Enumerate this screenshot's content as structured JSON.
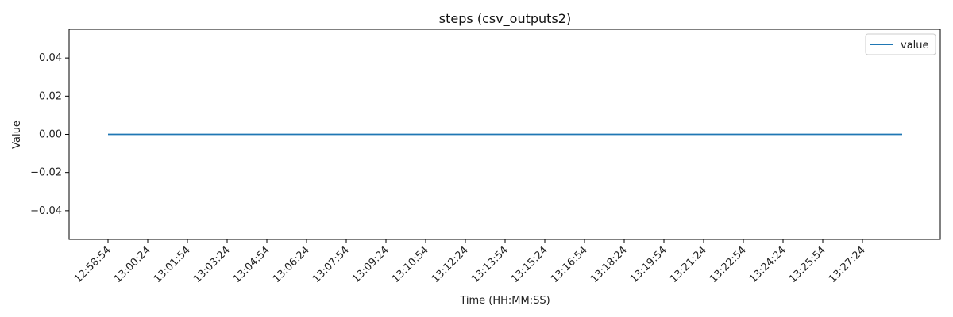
{
  "chart_data": {
    "type": "line",
    "title": "steps (csv_outputs2)",
    "xlabel": "Time (HH:MM:SS)",
    "ylabel": "Value",
    "x_ticks": [
      "12:58:54",
      "13:00:24",
      "13:01:54",
      "13:03:24",
      "13:04:54",
      "13:06:24",
      "13:07:54",
      "13:09:24",
      "13:10:54",
      "13:12:24",
      "13:13:54",
      "13:15:24",
      "13:16:54",
      "13:18:24",
      "13:19:54",
      "13:21:24",
      "13:22:54",
      "13:24:24",
      "13:25:54",
      "13:27:24"
    ],
    "x_range": [
      "12:58:54",
      "13:28:54"
    ],
    "y_ticks": [
      "0.04",
      "0.02",
      "0.00",
      "−0.02",
      "−0.04"
    ],
    "y_tick_values": [
      0.04,
      0.02,
      0.0,
      -0.02,
      -0.04
    ],
    "ylim": [
      -0.055,
      0.055
    ],
    "grid": false,
    "legend_position": "top-right",
    "series": [
      {
        "name": "value",
        "color": "#1f77b4",
        "x": [
          "12:58:54",
          "13:28:54"
        ],
        "y": [
          0,
          0
        ]
      }
    ]
  }
}
